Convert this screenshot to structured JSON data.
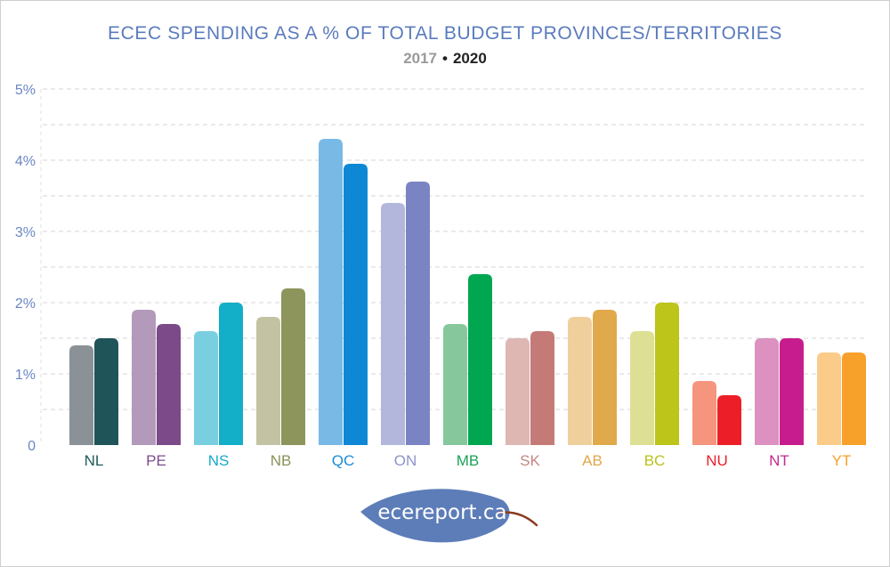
{
  "chart_data": {
    "type": "bar",
    "title": "ECEC SPENDING AS A % OF TOTAL BUDGET PROVINCES/TERRITORIES",
    "legend": [
      "2017",
      "2020"
    ],
    "legend_separator": "•",
    "xlabel": "",
    "ylabel": "",
    "ylim": [
      0,
      5
    ],
    "yticks": [
      0,
      1,
      2,
      3,
      4,
      5
    ],
    "ytick_labels": [
      "0",
      "1%",
      "2%",
      "3%",
      "4%",
      "5%"
    ],
    "grid": true,
    "categories": [
      "NL",
      "PE",
      "NS",
      "NB",
      "QC",
      "ON",
      "MB",
      "SK",
      "AB",
      "BC",
      "NU",
      "NT",
      "YT"
    ],
    "series": [
      {
        "name": "2017",
        "values": [
          1.4,
          1.9,
          1.6,
          1.8,
          4.3,
          3.4,
          1.7,
          1.5,
          1.8,
          1.6,
          0.9,
          1.5,
          1.3
        ]
      },
      {
        "name": "2020",
        "values": [
          1.5,
          1.7,
          2.0,
          2.2,
          3.95,
          3.7,
          2.4,
          1.6,
          1.9,
          2.0,
          0.7,
          1.5,
          1.3
        ]
      }
    ],
    "colors": {
      "NL": {
        "label": "#1f5a5b",
        "c2017": "#8a9197",
        "c2020": "#1f5459"
      },
      "PE": {
        "label": "#7a4a8c",
        "c2017": "#b39aba",
        "c2020": "#7c4a88"
      },
      "NS": {
        "label": "#16aac8",
        "c2017": "#79cfdf",
        "c2020": "#13aec8"
      },
      "NB": {
        "label": "#8a9257",
        "c2017": "#c3c3a3",
        "c2020": "#8d955c"
      },
      "QC": {
        "label": "#1b8ed6",
        "c2017": "#79b9e6",
        "c2020": "#0e88d5"
      },
      "ON": {
        "label": "#8c94c8",
        "c2017": "#b4b7dc",
        "c2020": "#7b84c3"
      },
      "MB": {
        "label": "#1aa356",
        "c2017": "#86c89c",
        "c2020": "#00a650"
      },
      "SK": {
        "label": "#c48682",
        "c2017": "#deb6b2",
        "c2020": "#c47b78"
      },
      "AB": {
        "label": "#e0a94a",
        "c2017": "#efcf9c",
        "c2020": "#e0aa4c"
      },
      "BC": {
        "label": "#b9c21c",
        "c2017": "#dde094",
        "c2020": "#bdc41a"
      },
      "NU": {
        "label": "#e8202a",
        "c2017": "#f5957d",
        "c2020": "#ec1f28"
      },
      "NT": {
        "label": "#c42a91",
        "c2017": "#dc91c0",
        "c2020": "#c71c8d"
      },
      "YT": {
        "label": "#f5a02a",
        "c2017": "#fbcb8a",
        "c2020": "#f7a02a"
      }
    },
    "title_color": "#5a7bbd",
    "axis_label_color": "#6a86c4"
  },
  "logo": {
    "text": "ecereport.ca",
    "leaf_color": "#5d7db9",
    "stem_color": "#8a3c20"
  }
}
